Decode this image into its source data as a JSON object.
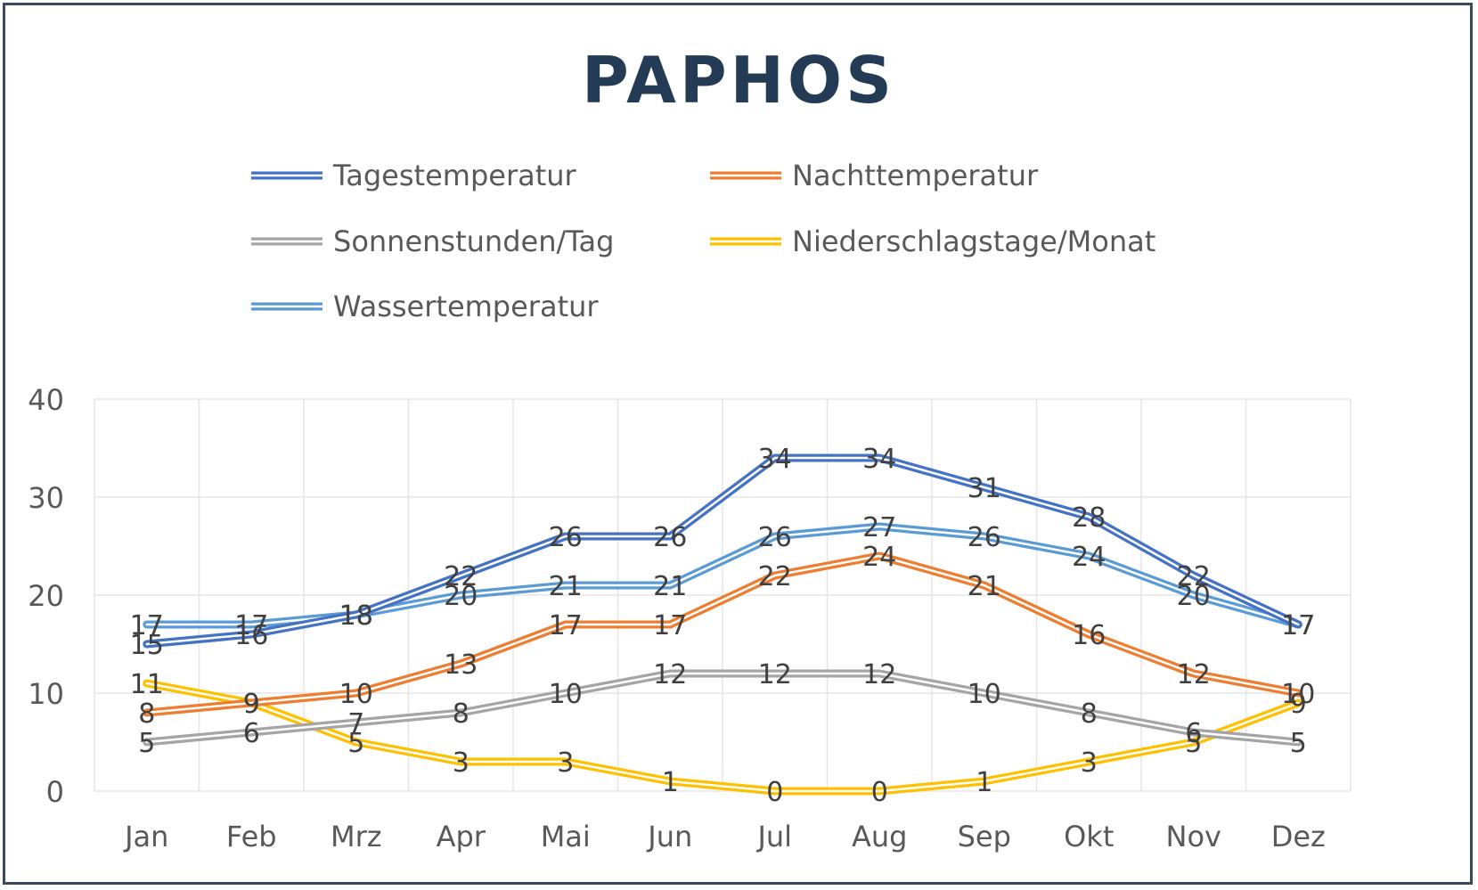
{
  "chart_data": {
    "type": "line",
    "title": "PAPHOS",
    "categories": [
      "Jan",
      "Feb",
      "Mrz",
      "Apr",
      "Mai",
      "Jun",
      "Jul",
      "Aug",
      "Sep",
      "Okt",
      "Nov",
      "Dez"
    ],
    "ylim": [
      0,
      40
    ],
    "yticks": [
      0,
      10,
      20,
      30,
      40
    ],
    "grid": true,
    "legend_position": "top",
    "series": [
      {
        "name": "Tagestemperatur",
        "color": "#4472c4",
        "values": [
          15,
          16,
          18,
          22,
          26,
          26,
          34,
          34,
          31,
          28,
          22,
          17
        ]
      },
      {
        "name": "Nachttemperatur",
        "color": "#ed7d31",
        "values": [
          8,
          9,
          10,
          13,
          17,
          17,
          22,
          24,
          21,
          16,
          12,
          10
        ]
      },
      {
        "name": "Sonnenstunden/Tag",
        "color": "#a5a5a5",
        "values": [
          5,
          6,
          7,
          8,
          10,
          12,
          12,
          12,
          10,
          8,
          6,
          5
        ]
      },
      {
        "name": "Niederschlagstage/Monat",
        "color": "#ffc000",
        "values": [
          11,
          9,
          5,
          3,
          3,
          1,
          0,
          0,
          1,
          3,
          5,
          9
        ]
      },
      {
        "name": "Wassertemperatur",
        "color": "#5b9bd5",
        "values": [
          17,
          17,
          18,
          20,
          21,
          21,
          26,
          27,
          26,
          24,
          20,
          17
        ]
      }
    ]
  }
}
